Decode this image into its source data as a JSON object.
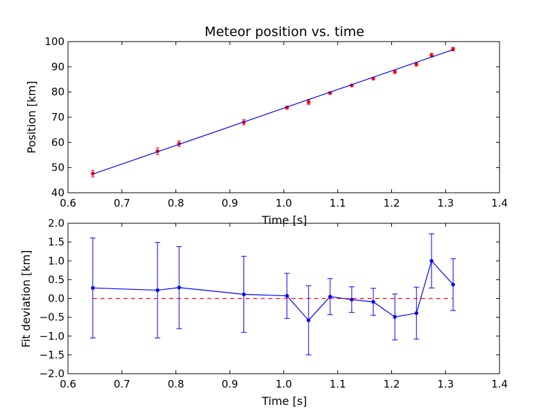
{
  "chart_data": [
    {
      "type": "scatter",
      "title": "Meteor position vs. time",
      "xlabel": "Time [s]",
      "ylabel": "Position [km]",
      "xlim": [
        0.6,
        1.4
      ],
      "ylim": [
        40,
        100
      ],
      "xticks": [
        "0.6",
        "0.7",
        "0.8",
        "0.9",
        "1.0",
        "1.1",
        "1.2",
        "1.3",
        "1.4"
      ],
      "yticks": [
        "40",
        "50",
        "60",
        "70",
        "80",
        "90",
        "100"
      ],
      "grid": false,
      "series": [
        {
          "kind": "points-with-errorbars",
          "color": "#ff0000",
          "x": [
            0.646,
            0.766,
            0.806,
            0.926,
            1.006,
            1.046,
            1.086,
            1.126,
            1.166,
            1.206,
            1.246,
            1.274,
            1.314
          ],
          "y": [
            47.6,
            56.5,
            59.5,
            68.0,
            73.8,
            76.0,
            79.6,
            82.6,
            85.3,
            88.0,
            91.0,
            94.6,
            97.0
          ],
          "yerr": [
            1.3,
            1.3,
            1.1,
            1.0,
            0.6,
            0.9,
            0.5,
            0.35,
            0.4,
            0.6,
            0.7,
            0.7,
            0.7
          ]
        },
        {
          "kind": "fit-line",
          "color": "#0000ff",
          "x": [
            0.646,
            1.314
          ],
          "y": [
            47.4,
            96.8
          ]
        }
      ]
    },
    {
      "type": "line",
      "title": "",
      "xlabel": "Time [s]",
      "ylabel": "Fit deviation [km]",
      "xlim": [
        0.6,
        1.4
      ],
      "ylim": [
        -2.0,
        2.0
      ],
      "xticks": [
        "0.6",
        "0.7",
        "0.8",
        "0.9",
        "1.0",
        "1.1",
        "1.2",
        "1.3",
        "1.4"
      ],
      "yticks": [
        "−2.0",
        "−1.5",
        "−1.0",
        "−0.5",
        "0.0",
        "0.5",
        "1.0",
        "1.5",
        "2.0"
      ],
      "grid": false,
      "series": [
        {
          "kind": "line-with-errorbars",
          "color": "#0000ff",
          "x": [
            0.646,
            0.766,
            0.806,
            0.926,
            1.006,
            1.046,
            1.086,
            1.126,
            1.166,
            1.206,
            1.246,
            1.274,
            1.314
          ],
          "y": [
            0.28,
            0.22,
            0.29,
            0.11,
            0.07,
            -0.58,
            0.05,
            -0.03,
            -0.09,
            -0.49,
            -0.39,
            1.0,
            0.37
          ],
          "yerr": [
            1.33,
            1.27,
            1.09,
            1.01,
            0.6,
            0.92,
            0.48,
            0.34,
            0.36,
            0.61,
            0.69,
            0.72,
            0.69
          ]
        },
        {
          "kind": "reference-line",
          "color": "#ff0000",
          "style": "dashed",
          "x": [
            0.646,
            1.314
          ],
          "y": [
            0,
            0
          ]
        }
      ]
    }
  ]
}
